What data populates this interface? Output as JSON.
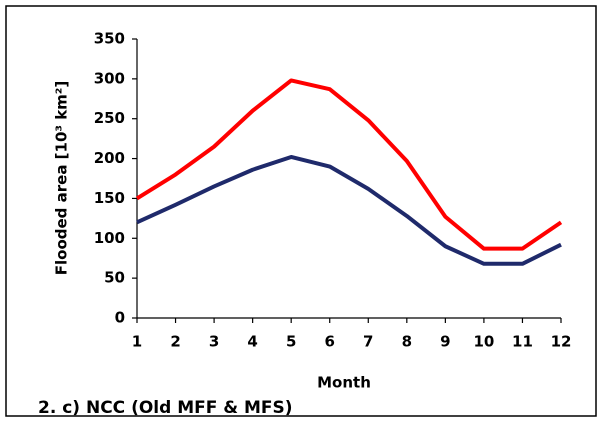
{
  "chart_data": {
    "type": "line",
    "x": [
      1,
      2,
      3,
      4,
      5,
      6,
      7,
      8,
      9,
      10,
      11,
      12
    ],
    "xlim": [
      1,
      12
    ],
    "xticks": [
      1,
      2,
      3,
      4,
      5,
      6,
      7,
      8,
      9,
      10,
      11,
      12
    ],
    "ylim": [
      0,
      350
    ],
    "yticks": [
      0,
      50,
      100,
      150,
      200,
      250,
      300,
      350
    ],
    "x_label": "Month",
    "y_label": "Flooded area [10³ km²]",
    "annotation": "2. c) NCC (Old MFF & MFS)",
    "grid": false,
    "series": [
      {
        "color": "#ff0000",
        "values": [
          150,
          180,
          215,
          260,
          298,
          287,
          248,
          197,
          127,
          87,
          87,
          120
        ]
      },
      {
        "color": "#1f2a6b",
        "values": [
          120,
          142,
          165,
          186,
          202,
          190,
          162,
          128,
          90,
          68,
          68,
          92
        ]
      }
    ]
  }
}
